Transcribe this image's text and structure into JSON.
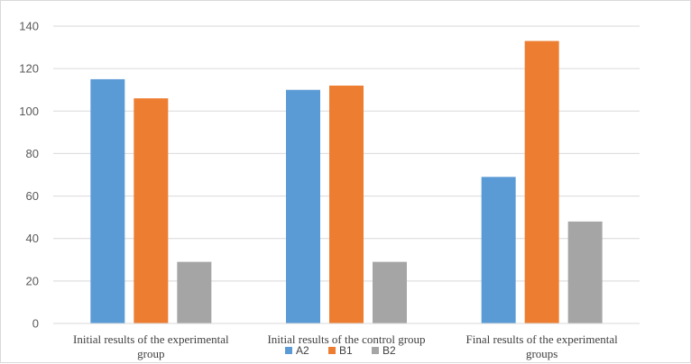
{
  "chart_data": {
    "type": "bar",
    "categories": [
      [
        "Initial results of the experimental",
        "group"
      ],
      [
        "Initial results of the control group"
      ],
      [
        "Final results of the experimental",
        "groups"
      ]
    ],
    "series": [
      {
        "name": "A2",
        "color": "#5b9bd5",
        "values": [
          115,
          110,
          69
        ]
      },
      {
        "name": "B1",
        "color": "#ed7d31",
        "values": [
          106,
          112,
          133
        ]
      },
      {
        "name": "B2",
        "color": "#a5a5a5",
        "values": [
          29,
          29,
          48
        ]
      }
    ],
    "yticks": [
      0,
      20,
      40,
      60,
      80,
      100,
      120,
      140
    ],
    "ylim": [
      0,
      140
    ],
    "grid": true,
    "legend": "bottom-center"
  }
}
